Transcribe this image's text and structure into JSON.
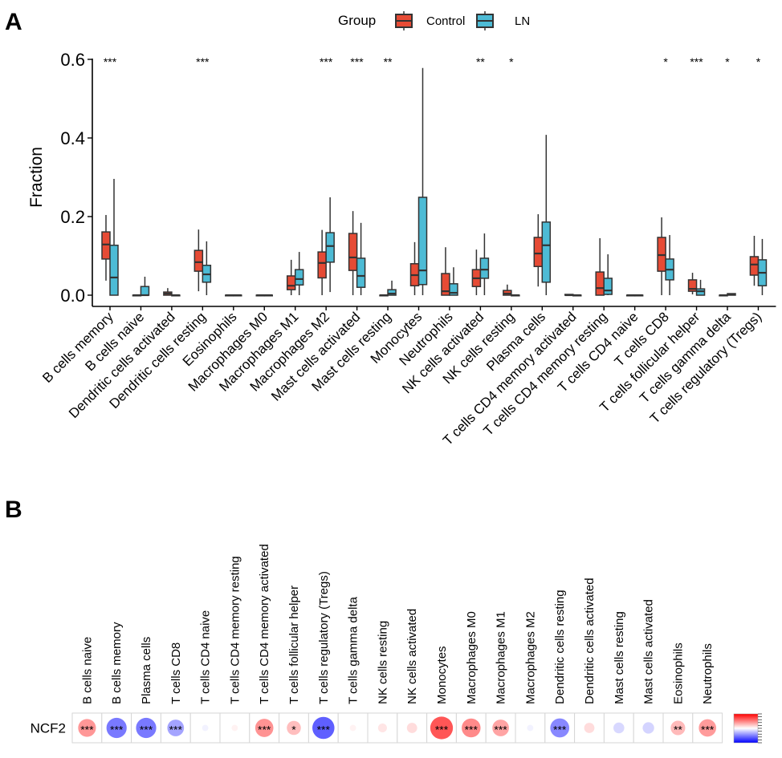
{
  "figure": {
    "panel_a_label": "A",
    "panel_b_label": "B"
  },
  "colors": {
    "control": "#E64B35",
    "ln": "#4DBBD5",
    "outline": "#333333",
    "positive": "#FF0000",
    "negative": "#0000FF"
  },
  "chart_data": [
    {
      "type": "box",
      "panel": "A",
      "title": "",
      "xlabel": "",
      "ylabel": "Fraction",
      "ylim": [
        0,
        0.6
      ],
      "yticks": [
        "0.0",
        "0.2",
        "0.4",
        "0.6"
      ],
      "ytick_values": [
        0,
        0.2,
        0.4,
        0.6
      ],
      "grid": false,
      "legend": {
        "title": "Group",
        "placement": "top-center",
        "entries": [
          "Control",
          "LN"
        ]
      },
      "categories": [
        "B cells memory",
        "B cells naive",
        "Dendritic cells activated",
        "Dendritic cells resting",
        "Eosinophils",
        "Macrophages M0",
        "Macrophages M1",
        "Macrophages M2",
        "Mast cells activated",
        "Mast cells resting",
        "Monocytes",
        "Neutrophils",
        "NK cells activated",
        "NK cells resting",
        "Plasma cells",
        "T cells CD4 memory activated",
        "T cells CD4 memory resting",
        "T cells CD4 naive",
        "T cells CD8",
        "T cells follicular helper",
        "T cells gamma delta",
        "T cells regulatory (Tregs)"
      ],
      "significance": [
        "***",
        "",
        "",
        "***",
        "",
        "",
        "",
        "***",
        "***",
        "**",
        "",
        "",
        "**",
        "*",
        "",
        "",
        "",
        "",
        "*",
        "***",
        "*",
        "*"
      ],
      "series": [
        {
          "name": "Control",
          "stats_order": [
            "min",
            "q1",
            "median",
            "q3",
            "max"
          ],
          "values": [
            [
              0.037,
              0.092,
              0.129,
              0.161,
              0.204
            ],
            [
              0.0,
              0.0,
              0.0,
              0.0,
              0.0
            ],
            [
              0.0,
              0.0,
              0.004,
              0.008,
              0.018
            ],
            [
              0.01,
              0.061,
              0.084,
              0.114,
              0.167
            ],
            [
              0.0,
              0.0,
              0.0,
              0.0,
              0.0
            ],
            [
              0.0,
              0.0,
              0.0,
              0.0,
              0.0
            ],
            [
              0.0,
              0.014,
              0.024,
              0.049,
              0.09
            ],
            [
              0.0,
              0.044,
              0.082,
              0.11,
              0.166
            ],
            [
              0.0,
              0.063,
              0.096,
              0.157,
              0.214
            ],
            [
              0.0,
              0.0,
              0.0,
              0.0,
              0.0
            ],
            [
              0.0,
              0.024,
              0.051,
              0.08,
              0.135
            ],
            [
              0.0,
              0.0,
              0.01,
              0.055,
              0.122
            ],
            [
              0.0,
              0.022,
              0.043,
              0.065,
              0.116
            ],
            [
              0.0,
              0.0,
              0.004,
              0.012,
              0.027
            ],
            [
              0.022,
              0.073,
              0.106,
              0.147,
              0.206
            ],
            [
              0.0,
              0.0,
              0.0,
              0.002,
              0.002
            ],
            [
              0.0,
              0.0,
              0.018,
              0.059,
              0.145
            ],
            [
              0.0,
              0.0,
              0.0,
              0.0,
              0.0
            ],
            [
              0.0,
              0.061,
              0.102,
              0.147,
              0.198
            ],
            [
              0.002,
              0.01,
              0.016,
              0.039,
              0.057
            ],
            [
              0.0,
              0.0,
              0.0,
              0.0,
              0.0
            ],
            [
              0.024,
              0.051,
              0.078,
              0.098,
              0.151
            ]
          ]
        },
        {
          "name": "LN",
          "stats_order": [
            "min",
            "q1",
            "median",
            "q3",
            "max"
          ],
          "values": [
            [
              0.0,
              0.0,
              0.045,
              0.127,
              0.296
            ],
            [
              0.0,
              0.0,
              0.0,
              0.022,
              0.047
            ],
            [
              0.0,
              0.0,
              0.0,
              0.0,
              0.0
            ],
            [
              0.0,
              0.033,
              0.053,
              0.076,
              0.137
            ],
            [
              0.0,
              0.0,
              0.0,
              0.0,
              0.0
            ],
            [
              0.0,
              0.0,
              0.0,
              0.0,
              0.0
            ],
            [
              0.0,
              0.026,
              0.041,
              0.065,
              0.11
            ],
            [
              0.008,
              0.084,
              0.125,
              0.159,
              0.249
            ],
            [
              0.0,
              0.02,
              0.049,
              0.094,
              0.184
            ],
            [
              0.0,
              0.0,
              0.004,
              0.014,
              0.037
            ],
            [
              0.0,
              0.027,
              0.063,
              0.249,
              0.578
            ],
            [
              0.0,
              0.0,
              0.006,
              0.029,
              0.071
            ],
            [
              0.0,
              0.043,
              0.065,
              0.094,
              0.157
            ],
            [
              0.0,
              0.0,
              0.0,
              0.0,
              0.0
            ],
            [
              0.0,
              0.033,
              0.127,
              0.186,
              0.408
            ],
            [
              0.0,
              0.0,
              0.0,
              0.0,
              0.0
            ],
            [
              0.0,
              0.002,
              0.012,
              0.043,
              0.104
            ],
            [
              0.0,
              0.0,
              0.0,
              0.0,
              0.0
            ],
            [
              0.0,
              0.039,
              0.065,
              0.092,
              0.153
            ],
            [
              0.0,
              0.0,
              0.01,
              0.016,
              0.039
            ],
            [
              0.0,
              0.0,
              0.002,
              0.004,
              0.004
            ],
            [
              0.0,
              0.024,
              0.057,
              0.09,
              0.143
            ]
          ]
        }
      ]
    },
    {
      "type": "heatmap",
      "panel": "B",
      "title": "",
      "row_labels": [
        "NCF2"
      ],
      "categories": [
        "B cells naive",
        "B cells memory",
        "Plasma cells",
        "T cells CD8",
        "T cells CD4 naive",
        "T cells CD4 memory resting",
        "T cells CD4 memory activated",
        "T cells follicular helper",
        "T cells regulatory (Tregs)",
        "T cells gamma delta",
        "NK cells resting",
        "NK cells activated",
        "Monocytes",
        "Macrophages M0",
        "Macrophages M1",
        "Macrophages M2",
        "Dendritic cells resting",
        "Dendritic cells activated",
        "Mast cells resting",
        "Mast cells activated",
        "Eosinophils",
        "Neutrophils"
      ],
      "values": [
        [
          0.48,
          -0.62,
          -0.62,
          -0.42,
          -0.06,
          0.06,
          0.5,
          0.3,
          -0.74,
          0.06,
          0.12,
          0.16,
          0.78,
          0.54,
          0.42,
          -0.06,
          -0.55,
          0.16,
          -0.18,
          -0.2,
          0.32,
          0.46
        ]
      ],
      "significance": [
        [
          "***",
          "***",
          "***",
          "***",
          "",
          "",
          "***",
          "*",
          "***",
          "",
          "",
          "",
          "***",
          "***",
          "***",
          "",
          "***",
          "",
          "",
          "",
          "**",
          "***"
        ]
      ],
      "colorbar": {
        "range": [
          -1,
          1
        ],
        "colors": [
          "#0000FF",
          "#FFFFFF",
          "#FF0000"
        ],
        "tick_labels_legible": false
      }
    }
  ]
}
